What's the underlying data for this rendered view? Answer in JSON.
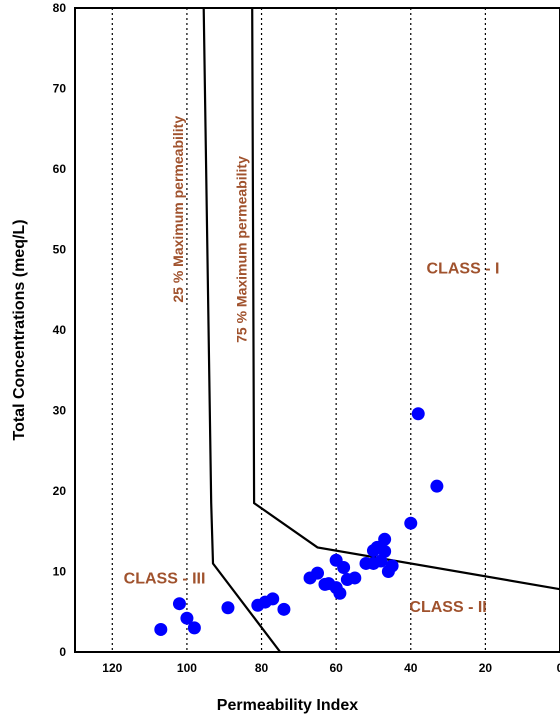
{
  "chart_data": {
    "type": "scatter",
    "title": "",
    "xlabel": "Permeability Index",
    "ylabel": "Total Concentrations (meq/L)",
    "x_reversed": true,
    "xlim": [
      0,
      130
    ],
    "ylim": [
      0,
      80
    ],
    "x_ticks": [
      "120",
      "100",
      "80",
      "60",
      "40",
      "20",
      "0"
    ],
    "y_ticks": [
      "0",
      "10",
      "20",
      "30",
      "40",
      "50",
      "60",
      "70",
      "80"
    ],
    "grid": "vertical dotted",
    "series": [
      {
        "marker_color": "#0000ff",
        "points": [
          {
            "x": 107,
            "y": 2.8
          },
          {
            "x": 102,
            "y": 6.0
          },
          {
            "x": 100,
            "y": 4.2
          },
          {
            "x": 98,
            "y": 3.0
          },
          {
            "x": 89,
            "y": 5.5
          },
          {
            "x": 81,
            "y": 5.8
          },
          {
            "x": 79,
            "y": 6.2
          },
          {
            "x": 77,
            "y": 6.6
          },
          {
            "x": 74,
            "y": 5.3
          },
          {
            "x": 67,
            "y": 9.2
          },
          {
            "x": 65,
            "y": 9.8
          },
          {
            "x": 63,
            "y": 8.4
          },
          {
            "x": 62,
            "y": 8.5
          },
          {
            "x": 60,
            "y": 8.0
          },
          {
            "x": 60,
            "y": 11.4
          },
          {
            "x": 59,
            "y": 7.3
          },
          {
            "x": 58,
            "y": 10.5
          },
          {
            "x": 57,
            "y": 9.0
          },
          {
            "x": 55,
            "y": 9.2
          },
          {
            "x": 52,
            "y": 11.0
          },
          {
            "x": 50,
            "y": 11.0
          },
          {
            "x": 50,
            "y": 12.6
          },
          {
            "x": 49,
            "y": 13.0
          },
          {
            "x": 48,
            "y": 11.3
          },
          {
            "x": 47,
            "y": 14.0
          },
          {
            "x": 47,
            "y": 12.5
          },
          {
            "x": 46,
            "y": 10.0
          },
          {
            "x": 45,
            "y": 10.7
          },
          {
            "x": 40,
            "y": 16.0
          },
          {
            "x": 38,
            "y": 29.6
          },
          {
            "x": 33,
            "y": 20.6
          }
        ]
      }
    ],
    "curves": [
      {
        "name": "25 % Maximum permeability",
        "points": [
          [
            95.5,
            80
          ],
          [
            93.5,
            18.5
          ],
          [
            93,
            11
          ],
          [
            75,
            0
          ]
        ]
      },
      {
        "name": "75 % Maximum permeability",
        "points": [
          [
            82.5,
            80
          ],
          [
            82,
            18.5
          ],
          [
            65,
            13
          ],
          [
            0,
            7.8
          ]
        ]
      }
    ],
    "annotations": [
      {
        "text": "25 % Maximum permeability",
        "x": 101,
        "y": 55,
        "rotation": -90,
        "color": "#a0522d"
      },
      {
        "text": "75 % Maximum permeability",
        "x": 84,
        "y": 50,
        "rotation": -90,
        "color": "#a0522d"
      },
      {
        "text": "CLASS - I",
        "x": 26,
        "y": 47,
        "color": "#a0522d"
      },
      {
        "text": "CLASS - II",
        "x": 30,
        "y": 5,
        "color": "#a0522d"
      },
      {
        "text": "CLASS - III",
        "x": 106,
        "y": 8.5,
        "color": "#a0522d"
      }
    ]
  }
}
